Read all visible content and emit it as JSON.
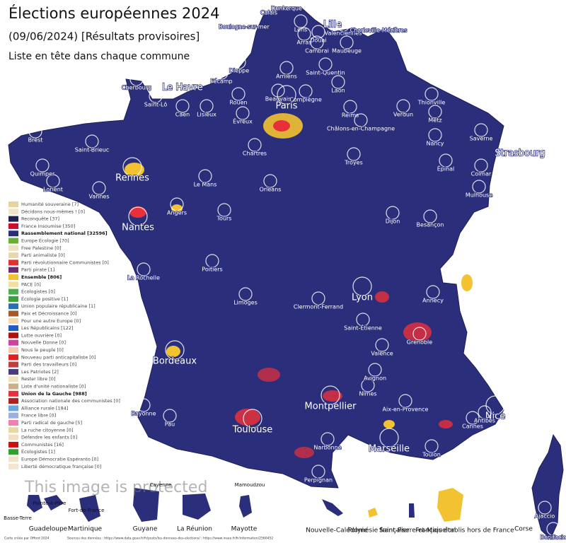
{
  "header": {
    "title": "Élections européennes 2024",
    "subtitle": "(09/06/2024) [Résultats provisoires]",
    "caption": "Liste en tête dans chaque commune"
  },
  "map": {
    "land_color": "#2b2e7a"
  },
  "legend": [
    {
      "label": "Humanité souveraine [7]",
      "color": "#e8d49a"
    },
    {
      "label": "Décidons nous-mêmes ! [0]",
      "color": "#f0e6c8"
    },
    {
      "label": "Reconquête [37]",
      "color": "#1f2352"
    },
    {
      "label": "France Insoumise [350]",
      "color": "#c8102e"
    },
    {
      "label": "Rassemblement national [32596]",
      "color": "#2b2e7a",
      "bold": true
    },
    {
      "label": "Europe Écologie [70]",
      "color": "#66b032"
    },
    {
      "label": "Free Palestine [0]",
      "color": "#eee0c0"
    },
    {
      "label": "Parti animaliste [0]",
      "color": "#e8d8b0"
    },
    {
      "label": "Parti révolutionnaire Communistes [0]",
      "color": "#e03030"
    },
    {
      "label": "Parti pirate [1]",
      "color": "#6a2c70"
    },
    {
      "label": "Ensemble [806]",
      "color": "#f2c230",
      "bold": true
    },
    {
      "label": "PACE [0]",
      "color": "#f3e0a0"
    },
    {
      "label": "Écologistes [0]",
      "color": "#4cae4c"
    },
    {
      "label": "Écologie positive [1]",
      "color": "#3ca03c"
    },
    {
      "label": "Union populaire républicaine [1]",
      "color": "#2a6fb0"
    },
    {
      "label": "Paix et Décroissance [0]",
      "color": "#a05a2c"
    },
    {
      "label": "Pour une autre Europe [0]",
      "color": "#f0d8b0"
    },
    {
      "label": "Les Républicains [122]",
      "color": "#1e5bc6"
    },
    {
      "label": "Lutte ouvrière [0]",
      "color": "#b01010"
    },
    {
      "label": "Nouvelle Donne [0]",
      "color": "#d040a0"
    },
    {
      "label": "Nous le peuple [0]",
      "color": "#f0c8b0"
    },
    {
      "label": "Nouveau parti anticapitaliste [0]",
      "color": "#e02020"
    },
    {
      "label": "Parti des travailleurs [0]",
      "color": "#c04040"
    },
    {
      "label": "Les Patriotes [2]",
      "color": "#4a3a80"
    },
    {
      "label": "Rester libre [0]",
      "color": "#f0e0c0"
    },
    {
      "label": "Liste d'unité nationaliste [0]",
      "color": "#c8b088"
    },
    {
      "label": "Union de la Gauche [988]",
      "color": "#e8303a",
      "bold": true
    },
    {
      "label": "Association nationale des communistes [0]",
      "color": "#b02020"
    },
    {
      "label": "Alliance rurale [184]",
      "color": "#6aa6e0"
    },
    {
      "label": "France libre [0]",
      "color": "#9bb0e0"
    },
    {
      "label": "Parti radical de gauche [5]",
      "color": "#f080b0"
    },
    {
      "label": "La ruche citoyenne [0]",
      "color": "#e8d8a0"
    },
    {
      "label": "Défendre les enfants [0]",
      "color": "#f0e0c0"
    },
    {
      "label": "Communistes [16]",
      "color": "#d01010"
    },
    {
      "label": "Écologistes [1]",
      "color": "#30a030"
    },
    {
      "label": "Europe Démocratie Espéranto [0]",
      "color": "#f0e4c8"
    },
    {
      "label": "Liberté démocratique française [0]",
      "color": "#f2e6d0"
    }
  ],
  "cities": [
    {
      "name": "Lille",
      "major": true
    },
    {
      "name": "Calais"
    },
    {
      "name": "Dunkerque"
    },
    {
      "name": "Boulogne-sur-mer"
    },
    {
      "name": "Valenciennes"
    },
    {
      "name": "Lens"
    },
    {
      "name": "Arras"
    },
    {
      "name": "Douai"
    },
    {
      "name": "Cambrai"
    },
    {
      "name": "Maubeuge"
    },
    {
      "name": "Charleville-Mézières"
    },
    {
      "name": "Amiens"
    },
    {
      "name": "Saint-Quentin"
    },
    {
      "name": "Dieppe"
    },
    {
      "name": "Le Havre",
      "major": true
    },
    {
      "name": "Fécamp"
    },
    {
      "name": "Rouen"
    },
    {
      "name": "Laon"
    },
    {
      "name": "Caen"
    },
    {
      "name": "Beauvais"
    },
    {
      "name": "Compiègne"
    },
    {
      "name": "Paris",
      "major": true
    },
    {
      "name": "Reims"
    },
    {
      "name": "Verdun"
    },
    {
      "name": "Metz"
    },
    {
      "name": "Thionville"
    },
    {
      "name": "Cherbourg"
    },
    {
      "name": "Saint-Lô"
    },
    {
      "name": "Lisieux"
    },
    {
      "name": "Évreux"
    },
    {
      "name": "Châlons-en-Champagne"
    },
    {
      "name": "Nancy"
    },
    {
      "name": "Strasbourg",
      "major": true
    },
    {
      "name": "Saverne"
    },
    {
      "name": "Brest"
    },
    {
      "name": "Saint-Brieuc"
    },
    {
      "name": "Rennes",
      "major": true
    },
    {
      "name": "Le Mans"
    },
    {
      "name": "Chartres"
    },
    {
      "name": "Orléans"
    },
    {
      "name": "Troyes"
    },
    {
      "name": "Épinal"
    },
    {
      "name": "Colmar"
    },
    {
      "name": "Mulhouse"
    },
    {
      "name": "Dijon"
    },
    {
      "name": "Besançon"
    },
    {
      "name": "Tours"
    },
    {
      "name": "Angers"
    },
    {
      "name": "Nantes",
      "major": true
    },
    {
      "name": "Poitiers"
    },
    {
      "name": "Limoges"
    },
    {
      "name": "Clermont-Ferrand"
    },
    {
      "name": "Lyon",
      "major": true
    },
    {
      "name": "Annecy"
    },
    {
      "name": "Grenoble"
    },
    {
      "name": "Saint-Étienne"
    },
    {
      "name": "Bordeaux",
      "major": true
    },
    {
      "name": "Valence"
    },
    {
      "name": "Montpellier",
      "major": true
    },
    {
      "name": "Nîmes"
    },
    {
      "name": "Avignon"
    },
    {
      "name": "Aix-en-Provence"
    },
    {
      "name": "Marseille",
      "major": true
    },
    {
      "name": "Toulon"
    },
    {
      "name": "Nice",
      "major": true
    },
    {
      "name": "Cannes"
    },
    {
      "name": "Antibes"
    },
    {
      "name": "Toulouse",
      "major": true
    },
    {
      "name": "Perpignan"
    },
    {
      "name": "Bayonne"
    },
    {
      "name": "Pau"
    },
    {
      "name": "Narbonne"
    },
    {
      "name": "Lorient"
    },
    {
      "name": "Vannes"
    },
    {
      "name": "Quimper"
    },
    {
      "name": "La Rochelle"
    },
    {
      "name": "Ajaccio"
    },
    {
      "name": "Bonifacio"
    }
  ],
  "overseas": [
    {
      "name": "Guadeloupe",
      "places": [
        "Basse-Terre",
        "Pointe-à-Pitre"
      ]
    },
    {
      "name": "Martinique",
      "places": [
        "Fort-de-France"
      ]
    },
    {
      "name": "Guyane",
      "places": [
        "Cayenne"
      ]
    },
    {
      "name": "La Réunion",
      "places": []
    },
    {
      "name": "Mayotte",
      "places": [
        "Mamoudzou"
      ]
    },
    {
      "name": "Nouvelle-Calédonie",
      "places": []
    },
    {
      "name": "Polynésie française",
      "places": []
    },
    {
      "name": "Saint-Pierre-et-Miquelon",
      "places": []
    },
    {
      "name": "Français établis hors de France",
      "places": []
    },
    {
      "name": "Corse",
      "places": []
    }
  ],
  "watermark": "This image is protected",
  "footer": {
    "credit": "Carte créée par Offord 2024",
    "sources": "Sources des données : https://www.data.gouv.fr/fr/posts/les-donnees-des-elections/ ; https://www.insee.fr/fr/information/2560452"
  }
}
